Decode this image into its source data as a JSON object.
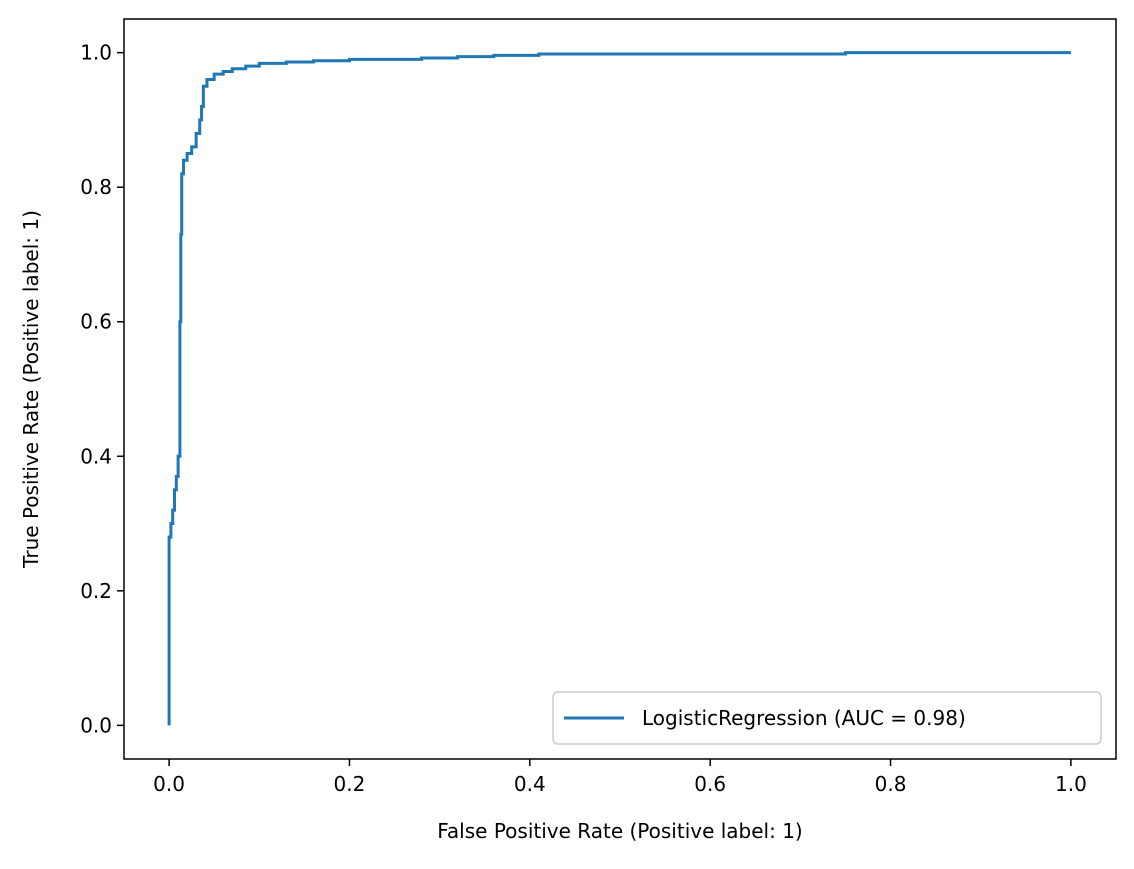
{
  "chart_data": {
    "type": "line",
    "title": "",
    "xlabel": "False Positive Rate (Positive label: 1)",
    "ylabel": "True Positive Rate (Positive label: 1)",
    "xlim": [
      -0.05,
      1.05
    ],
    "ylim": [
      -0.05,
      1.05
    ],
    "xticks": [
      0.0,
      0.2,
      0.4,
      0.6,
      0.8,
      1.0
    ],
    "yticks": [
      0.0,
      0.2,
      0.4,
      0.6,
      0.8,
      1.0
    ],
    "xtick_labels": [
      "0.0",
      "0.2",
      "0.4",
      "0.6",
      "0.8",
      "1.0"
    ],
    "ytick_labels": [
      "0.0",
      "0.2",
      "0.4",
      "0.6",
      "0.8",
      "1.0"
    ],
    "grid": false,
    "legend_position": "lower-right",
    "series": [
      {
        "name": "LogisticRegression (AUC = 0.98)",
        "color": "#1f77b4",
        "x": [
          0.0,
          0.0,
          0.002,
          0.002,
          0.004,
          0.004,
          0.006,
          0.006,
          0.008,
          0.008,
          0.01,
          0.01,
          0.012,
          0.012,
          0.013,
          0.013,
          0.014,
          0.014,
          0.016,
          0.016,
          0.02,
          0.02,
          0.025,
          0.025,
          0.03,
          0.03,
          0.034,
          0.034,
          0.036,
          0.036,
          0.038,
          0.038,
          0.042,
          0.042,
          0.05,
          0.05,
          0.06,
          0.06,
          0.07,
          0.07,
          0.085,
          0.085,
          0.1,
          0.1,
          0.13,
          0.13,
          0.16,
          0.16,
          0.2,
          0.2,
          0.28,
          0.28,
          0.32,
          0.32,
          0.36,
          0.36,
          0.41,
          0.41,
          0.75,
          0.75,
          1.0
        ],
        "y": [
          0.0,
          0.28,
          0.28,
          0.3,
          0.3,
          0.32,
          0.32,
          0.35,
          0.35,
          0.37,
          0.37,
          0.4,
          0.4,
          0.6,
          0.6,
          0.73,
          0.73,
          0.82,
          0.82,
          0.84,
          0.84,
          0.85,
          0.85,
          0.86,
          0.86,
          0.88,
          0.88,
          0.9,
          0.9,
          0.92,
          0.92,
          0.95,
          0.95,
          0.96,
          0.96,
          0.968,
          0.968,
          0.972,
          0.972,
          0.976,
          0.976,
          0.98,
          0.98,
          0.984,
          0.984,
          0.986,
          0.986,
          0.988,
          0.988,
          0.99,
          0.99,
          0.992,
          0.992,
          0.994,
          0.994,
          0.996,
          0.996,
          0.998,
          0.998,
          1.0,
          1.0
        ]
      }
    ]
  }
}
